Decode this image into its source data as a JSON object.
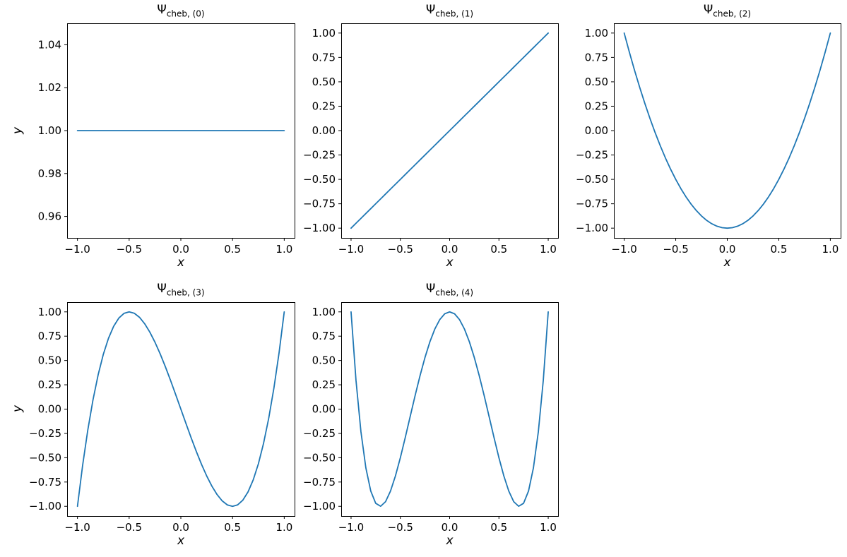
{
  "figure": {
    "background": "#ffffff",
    "line_color": "#1f77b4"
  },
  "chart_data": [
    {
      "type": "line",
      "title_main": "Ψ",
      "title_sub": "cheb, (0)",
      "xlabel": "x",
      "ylabel": "y",
      "xlim": [
        -1.1,
        1.1
      ],
      "ylim": [
        0.95,
        1.05
      ],
      "x_ticks": {
        "values": [
          -1,
          -0.5,
          0,
          0.5,
          1
        ],
        "labels": [
          "−1.0",
          "−0.5",
          "0.0",
          "0.5",
          "1.0"
        ]
      },
      "y_ticks": {
        "values": [
          0.96,
          0.98,
          1.0,
          1.02,
          1.04
        ],
        "labels": [
          "0.96",
          "0.98",
          "1.00",
          "1.02",
          "1.04"
        ]
      },
      "line_color": "#1f77b4",
      "x": [
        -1,
        -0.95,
        -0.9,
        -0.85,
        -0.8,
        -0.75,
        -0.7,
        -0.65,
        -0.6,
        -0.55,
        -0.5,
        -0.45,
        -0.4,
        -0.35,
        -0.3,
        -0.25,
        -0.2,
        -0.15,
        -0.1,
        -0.05,
        0,
        0.05,
        0.1,
        0.15,
        0.2,
        0.25,
        0.3,
        0.35,
        0.4,
        0.45,
        0.5,
        0.55,
        0.6,
        0.65,
        0.7,
        0.75,
        0.8,
        0.85,
        0.9,
        0.95,
        1
      ],
      "y": [
        1,
        1,
        1,
        1,
        1,
        1,
        1,
        1,
        1,
        1,
        1,
        1,
        1,
        1,
        1,
        1,
        1,
        1,
        1,
        1,
        1,
        1,
        1,
        1,
        1,
        1,
        1,
        1,
        1,
        1,
        1,
        1,
        1,
        1,
        1,
        1,
        1,
        1,
        1,
        1,
        1
      ]
    },
    {
      "type": "line",
      "title_main": "Ψ",
      "title_sub": "cheb, (1)",
      "xlabel": "x",
      "ylabel": "",
      "xlim": [
        -1.1,
        1.1
      ],
      "ylim": [
        -1.1,
        1.1
      ],
      "x_ticks": {
        "values": [
          -1,
          -0.5,
          0,
          0.5,
          1
        ],
        "labels": [
          "−1.0",
          "−0.5",
          "0.0",
          "0.5",
          "1.0"
        ]
      },
      "y_ticks": {
        "values": [
          1,
          0.75,
          0.5,
          0.25,
          0,
          -0.25,
          -0.5,
          -0.75,
          -1
        ],
        "labels": [
          "1.00",
          "0.75",
          "0.50",
          "0.25",
          "0.00",
          "−0.25",
          "−0.50",
          "−0.75",
          "−1.00"
        ]
      },
      "line_color": "#1f77b4",
      "x": [
        -1,
        -0.95,
        -0.9,
        -0.85,
        -0.8,
        -0.75,
        -0.7,
        -0.65,
        -0.6,
        -0.55,
        -0.5,
        -0.45,
        -0.4,
        -0.35,
        -0.3,
        -0.25,
        -0.2,
        -0.15,
        -0.1,
        -0.05,
        0,
        0.05,
        0.1,
        0.15,
        0.2,
        0.25,
        0.3,
        0.35,
        0.4,
        0.45,
        0.5,
        0.55,
        0.6,
        0.65,
        0.7,
        0.75,
        0.8,
        0.85,
        0.9,
        0.95,
        1
      ],
      "y": [
        -1,
        -0.95,
        -0.9,
        -0.85,
        -0.8,
        -0.75,
        -0.7,
        -0.65,
        -0.6,
        -0.55,
        -0.5,
        -0.45,
        -0.4,
        -0.35,
        -0.3,
        -0.25,
        -0.2,
        -0.15,
        -0.1,
        -0.05,
        0,
        0.05,
        0.1,
        0.15,
        0.2,
        0.25,
        0.3,
        0.35,
        0.4,
        0.45,
        0.5,
        0.55,
        0.6,
        0.65,
        0.7,
        0.75,
        0.8,
        0.85,
        0.9,
        0.95,
        1
      ]
    },
    {
      "type": "line",
      "title_main": "Ψ",
      "title_sub": "cheb, (2)",
      "xlabel": "x",
      "ylabel": "",
      "xlim": [
        -1.1,
        1.1
      ],
      "ylim": [
        -1.1,
        1.1
      ],
      "x_ticks": {
        "values": [
          -1,
          -0.5,
          0,
          0.5,
          1
        ],
        "labels": [
          "−1.0",
          "−0.5",
          "0.0",
          "0.5",
          "1.0"
        ]
      },
      "y_ticks": {
        "values": [
          1,
          0.75,
          0.5,
          0.25,
          0,
          -0.25,
          -0.5,
          -0.75,
          -1
        ],
        "labels": [
          "1.00",
          "0.75",
          "0.50",
          "0.25",
          "0.00",
          "−0.25",
          "−0.50",
          "−0.75",
          "−1.00"
        ]
      },
      "line_color": "#1f77b4",
      "x": [
        -1,
        -0.95,
        -0.9,
        -0.85,
        -0.8,
        -0.75,
        -0.7,
        -0.65,
        -0.6,
        -0.55,
        -0.5,
        -0.45,
        -0.4,
        -0.35,
        -0.3,
        -0.25,
        -0.2,
        -0.15,
        -0.1,
        -0.05,
        0,
        0.05,
        0.1,
        0.15,
        0.2,
        0.25,
        0.3,
        0.35,
        0.4,
        0.45,
        0.5,
        0.55,
        0.6,
        0.65,
        0.7,
        0.75,
        0.8,
        0.85,
        0.9,
        0.95,
        1
      ],
      "y": [
        1,
        0.805,
        0.62,
        0.445,
        0.28,
        0.125,
        -0.02,
        -0.155,
        -0.28,
        -0.395,
        -0.5,
        -0.595,
        -0.68,
        -0.755,
        -0.82,
        -0.875,
        -0.92,
        -0.955,
        -0.98,
        -0.995,
        -1,
        -0.995,
        -0.98,
        -0.955,
        -0.92,
        -0.875,
        -0.82,
        -0.755,
        -0.68,
        -0.595,
        -0.5,
        -0.395,
        -0.28,
        -0.155,
        -0.02,
        0.125,
        0.28,
        0.445,
        0.62,
        0.805,
        1
      ]
    },
    {
      "type": "line",
      "title_main": "Ψ",
      "title_sub": "cheb, (3)",
      "xlabel": "x",
      "ylabel": "y",
      "xlim": [
        -1.1,
        1.1
      ],
      "ylim": [
        -1.1,
        1.1
      ],
      "x_ticks": {
        "values": [
          -1,
          -0.5,
          0,
          0.5,
          1
        ],
        "labels": [
          "−1.0",
          "−0.5",
          "0.0",
          "0.5",
          "1.0"
        ]
      },
      "y_ticks": {
        "values": [
          1,
          0.75,
          0.5,
          0.25,
          0,
          -0.25,
          -0.5,
          -0.75,
          -1
        ],
        "labels": [
          "1.00",
          "0.75",
          "0.50",
          "0.25",
          "0.00",
          "−0.25",
          "−0.50",
          "−0.75",
          "−1.00"
        ]
      },
      "line_color": "#1f77b4",
      "x": [
        -1,
        -0.95,
        -0.9,
        -0.85,
        -0.8,
        -0.75,
        -0.7,
        -0.65,
        -0.6,
        -0.55,
        -0.5,
        -0.45,
        -0.4,
        -0.35,
        -0.3,
        -0.25,
        -0.2,
        -0.15,
        -0.1,
        -0.05,
        0,
        0.05,
        0.1,
        0.15,
        0.2,
        0.25,
        0.3,
        0.35,
        0.4,
        0.45,
        0.5,
        0.55,
        0.6,
        0.65,
        0.7,
        0.75,
        0.8,
        0.85,
        0.9,
        0.95,
        1
      ],
      "y": [
        -1,
        -0.5795,
        -0.216,
        0.0935,
        0.352,
        0.5625,
        0.728,
        0.8515,
        0.936,
        0.9845,
        1,
        0.9855,
        0.944,
        0.8785,
        0.792,
        0.6875,
        0.568,
        0.4365,
        0.296,
        0.1495,
        0,
        -0.1495,
        -0.296,
        -0.4365,
        -0.568,
        -0.6875,
        -0.792,
        -0.8785,
        -0.944,
        -0.9855,
        -1,
        -0.9845,
        -0.936,
        -0.8515,
        -0.728,
        -0.5625,
        -0.352,
        -0.0935,
        0.216,
        0.5795,
        1
      ]
    },
    {
      "type": "line",
      "title_main": "Ψ",
      "title_sub": "cheb, (4)",
      "xlabel": "x",
      "ylabel": "",
      "xlim": [
        -1.1,
        1.1
      ],
      "ylim": [
        -1.1,
        1.1
      ],
      "x_ticks": {
        "values": [
          -1,
          -0.5,
          0,
          0.5,
          1
        ],
        "labels": [
          "−1.0",
          "−0.5",
          "0.0",
          "0.5",
          "1.0"
        ]
      },
      "y_ticks": {
        "values": [
          1,
          0.75,
          0.5,
          0.25,
          0,
          -0.25,
          -0.5,
          -0.75,
          -1
        ],
        "labels": [
          "1.00",
          "0.75",
          "0.50",
          "0.25",
          "0.00",
          "−0.25",
          "−0.50",
          "−0.75",
          "−1.00"
        ]
      },
      "line_color": "#1f77b4",
      "x": [
        -1,
        -0.95,
        -0.9,
        -0.85,
        -0.8,
        -0.75,
        -0.7,
        -0.65,
        -0.6,
        -0.55,
        -0.5,
        -0.45,
        -0.4,
        -0.35,
        -0.3,
        -0.25,
        -0.2,
        -0.15,
        -0.1,
        -0.05,
        0,
        0.05,
        0.1,
        0.15,
        0.2,
        0.25,
        0.3,
        0.35,
        0.4,
        0.45,
        0.5,
        0.55,
        0.6,
        0.65,
        0.7,
        0.75,
        0.8,
        0.85,
        0.9,
        0.95,
        1
      ],
      "y": [
        1,
        0.2961,
        -0.2312,
        -0.604,
        -0.8432,
        -0.9688,
        -0.9992,
        -0.952,
        -0.8432,
        -0.688,
        -0.5,
        -0.292,
        -0.0752,
        0.1401,
        0.3448,
        0.5313,
        0.6928,
        0.8241,
        0.9208,
        0.9801,
        1,
        0.9801,
        0.9208,
        0.8241,
        0.6928,
        0.5313,
        0.3448,
        0.1401,
        -0.0752,
        -0.292,
        -0.5,
        -0.688,
        -0.8432,
        -0.952,
        -0.9992,
        -0.9688,
        -0.8432,
        -0.604,
        -0.2312,
        0.2961,
        1
      ]
    }
  ]
}
